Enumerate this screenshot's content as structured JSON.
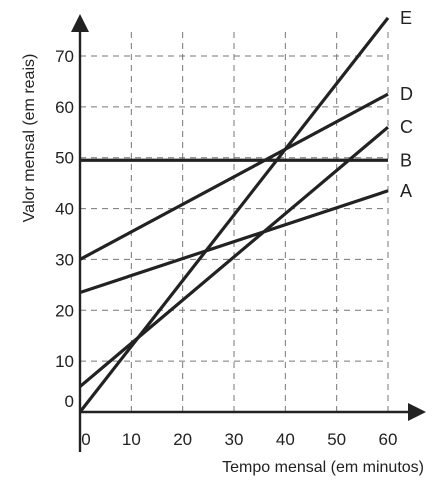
{
  "chart_data": {
    "type": "line",
    "title": "",
    "xlabel": "Tempo mensal (em minutos)",
    "ylabel": "Valor mensal (em reais)",
    "xlim": [
      0,
      60
    ],
    "ylim": [
      0,
      70
    ],
    "x_ticks": [
      0,
      10,
      20,
      30,
      40,
      50,
      60
    ],
    "y_ticks": [
      0,
      10,
      20,
      30,
      40,
      50,
      60,
      70
    ],
    "grid": true,
    "legend": "series labels at right end of lines",
    "line_color": "#222222",
    "series": [
      {
        "name": "A",
        "x": [
          0,
          60
        ],
        "y": [
          23.5,
          43.5
        ]
      },
      {
        "name": "B",
        "x": [
          0,
          60
        ],
        "y": [
          49.5,
          49.5
        ]
      },
      {
        "name": "C",
        "x": [
          0,
          60
        ],
        "y": [
          5,
          56
        ]
      },
      {
        "name": "D",
        "x": [
          0,
          60
        ],
        "y": [
          30,
          62.5
        ]
      },
      {
        "name": "E",
        "x": [
          0,
          60
        ],
        "y": [
          0,
          77.5
        ]
      }
    ]
  }
}
